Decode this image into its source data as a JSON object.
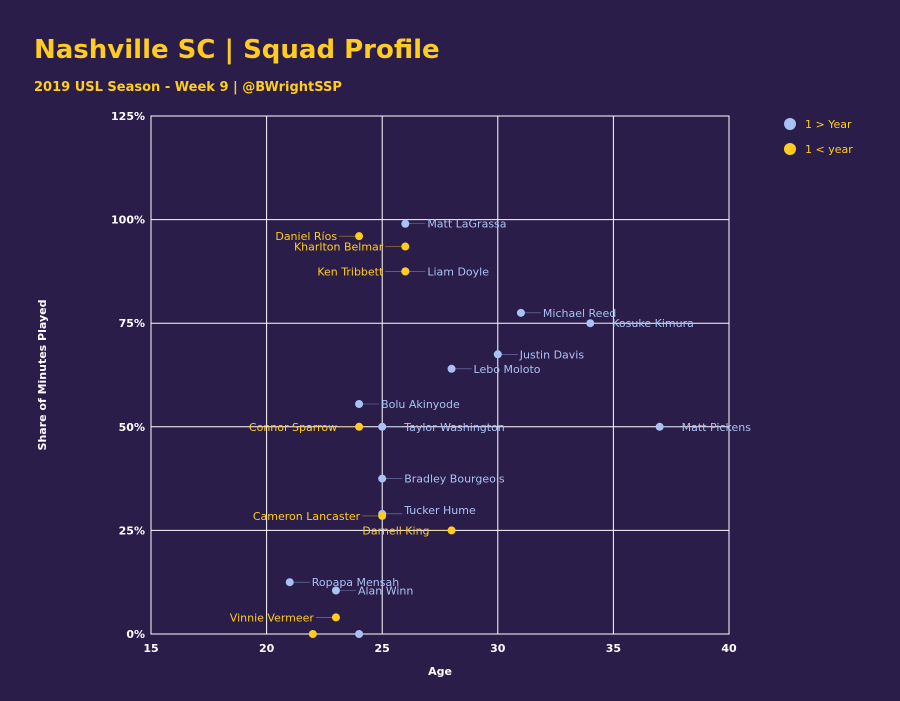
{
  "title": "Nashville SC  |  Squad Profile",
  "subtitle": "2019 USL Season - Week 9  |  @BWrightSSP",
  "colors": {
    "background": "#2b1d4a",
    "title": "#ffcc1f",
    "grid": "#ffffff",
    "series_over_year": "#a9c2f3",
    "series_under_year": "#ffcc1f"
  },
  "chart_data": {
    "type": "scatter",
    "xlabel": "Age",
    "ylabel": "Share of Minutes Played",
    "xlim": [
      15,
      40
    ],
    "ylim": [
      0,
      125
    ],
    "x_ticks": [
      "15",
      "20",
      "25",
      "30",
      "35",
      "40"
    ],
    "y_ticks": [
      "0%",
      "25%",
      "50%",
      "75%",
      "100%",
      "125%"
    ],
    "grid": true,
    "legend_position": "top-right",
    "series": [
      {
        "name": "1 > Year",
        "color": "#a9c2f3",
        "points": [
          {
            "label": "Matt LaGrassa",
            "x": 26,
            "y": 99
          },
          {
            "label": "Liam Doyle",
            "x": 26,
            "y": 87.5
          },
          {
            "label": "Michael Reed",
            "x": 31,
            "y": 77.5
          },
          {
            "label": "Kosuke Kimura",
            "x": 34,
            "y": 75
          },
          {
            "label": "Justin Davis",
            "x": 30,
            "y": 67.5
          },
          {
            "label": "Lebo Moloto",
            "x": 28,
            "y": 64
          },
          {
            "label": "Bolu Akinyode",
            "x": 24,
            "y": 55.5
          },
          {
            "label": "Taylor Washington",
            "x": 25,
            "y": 50
          },
          {
            "label": "Matt Pickens",
            "x": 37,
            "y": 50
          },
          {
            "label": "Bradley Bourgeois",
            "x": 25,
            "y": 37.5
          },
          {
            "label": "Tucker Hume",
            "x": 25,
            "y": 29
          },
          {
            "label": "Ropapa Mensah",
            "x": 21,
            "y": 12.5
          },
          {
            "label": "Alan Winn",
            "x": 23,
            "y": 10.5
          },
          {
            "label": "",
            "x": 24,
            "y": 0
          }
        ]
      },
      {
        "name": "1 < year",
        "color": "#ffcc1f",
        "points": [
          {
            "label": "Daniel Ríos",
            "x": 24,
            "y": 96
          },
          {
            "label": "Kharlton Belmar",
            "x": 26,
            "y": 93.5
          },
          {
            "label": "Ken Tribbett",
            "x": 26,
            "y": 87.5
          },
          {
            "label": "Connor Sparrow",
            "x": 24,
            "y": 50
          },
          {
            "label": "Cameron Lancaster",
            "x": 25,
            "y": 28.5
          },
          {
            "label": "Darnell King",
            "x": 28,
            "y": 25
          },
          {
            "label": "Vinnie Vermeer",
            "x": 23,
            "y": 4
          },
          {
            "label": "",
            "x": 22,
            "y": 0
          }
        ]
      }
    ]
  }
}
